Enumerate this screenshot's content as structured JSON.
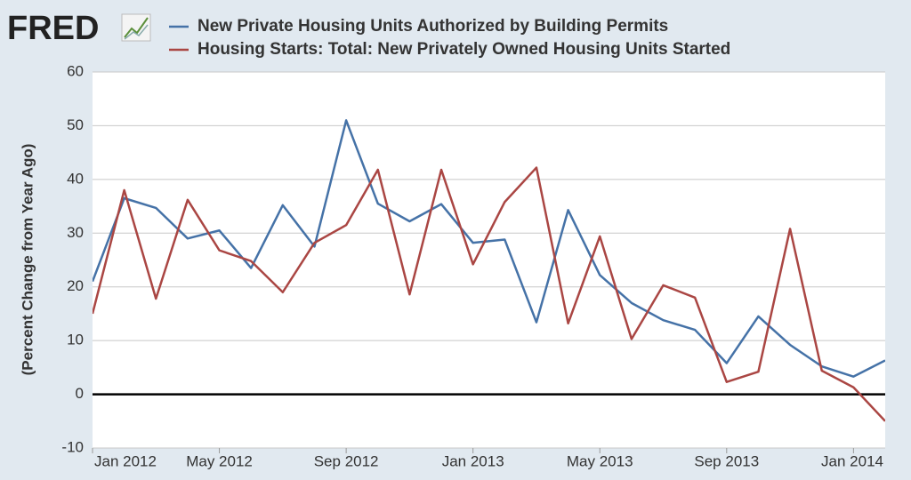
{
  "chart_data": {
    "type": "line",
    "logo": "FRED",
    "y_label": "(Percent Change from Year Ago)",
    "x": [
      "2012-01",
      "2012-02",
      "2012-03",
      "2012-04",
      "2012-05",
      "2012-06",
      "2012-07",
      "2012-08",
      "2012-09",
      "2012-10",
      "2012-11",
      "2012-12",
      "2013-01",
      "2013-02",
      "2013-03",
      "2013-04",
      "2013-05",
      "2013-06",
      "2013-07",
      "2013-08",
      "2013-09",
      "2013-10",
      "2013-11",
      "2013-12",
      "2014-01",
      "2014-02"
    ],
    "series": [
      {
        "name": "New Private Housing Units Authorized by Building Permits",
        "color": "#4572a7",
        "values": [
          21,
          36.5,
          34.7,
          29,
          30.5,
          23.5,
          35.2,
          27.5,
          51,
          35.5,
          32.2,
          35.4,
          28.2,
          28.8,
          13.4,
          34.3,
          22.2,
          17,
          13.8,
          12,
          5.8,
          14.5,
          9.2,
          5.2,
          3.3,
          6.3
        ]
      },
      {
        "name": "Housing Starts: Total: New Privately Owned Housing Units Started",
        "color": "#aa4643",
        "values": [
          15,
          38,
          17.8,
          36.2,
          26.8,
          24.8,
          19,
          28.2,
          31.5,
          41.8,
          18.6,
          41.8,
          24.2,
          35.8,
          42.2,
          13.2,
          29.4,
          10.3,
          20.3,
          18,
          2.3,
          4.2,
          30.8,
          4.4,
          1.3,
          -5
        ]
      }
    ],
    "xlim": [
      "2012-01",
      "2014-02"
    ],
    "xticks": [
      {
        "value": "2012-01",
        "label": "Jan 2012"
      },
      {
        "value": "2012-05",
        "label": "May 2012"
      },
      {
        "value": "2012-09",
        "label": "Sep 2012"
      },
      {
        "value": "2013-01",
        "label": "Jan 2013"
      },
      {
        "value": "2013-05",
        "label": "May 2013"
      },
      {
        "value": "2013-09",
        "label": "Sep 2013"
      },
      {
        "value": "2014-01",
        "label": "Jan 2014"
      }
    ],
    "ylim": [
      -10,
      60
    ],
    "yticks": [
      -10,
      0,
      10,
      20,
      30,
      40,
      50,
      60
    ],
    "grid": true,
    "zero_line": true
  }
}
